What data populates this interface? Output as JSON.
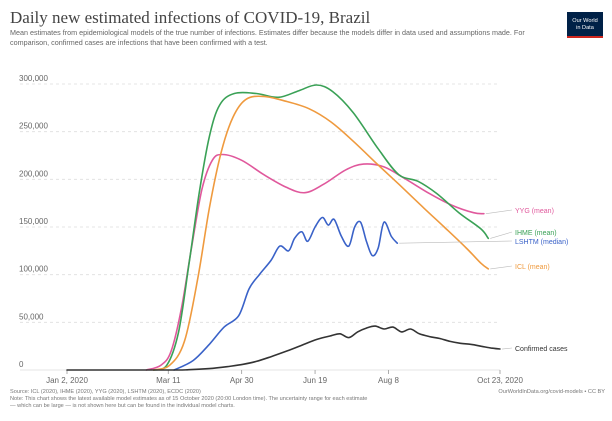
{
  "header": {
    "title": "Daily new estimated infections of COVID-19, Brazil",
    "subtitle": "Mean estimates from epidemiological models of the true number of infections. Estimates differ because the models differ in data used and assumptions made. For comparison, confirmed cases are infections that have been confirmed with a test."
  },
  "logo": {
    "line1": "Our World",
    "line2": "in Data"
  },
  "footer": {
    "source": "Source: ICL (2020), IHME (2020), YYG (2020), LSHTM (2020), ECDC (2020)",
    "url": "OurWorldInData.org/covid-models • CC BY",
    "note": "Note: This chart shows the latest available model estimates as of 15 October 2020 (20:00 London time). The uncertainty range for each estimate",
    "note2": "— which can be large — is not shown here but can be found in the individual model charts."
  },
  "colors": {
    "YYG": "#e0589c",
    "IHME": "#3aa156",
    "LSHTM": "#3a62c8",
    "ICL": "#ef9a3e",
    "Confirmed": "#333333",
    "grid": "#dddddd"
  },
  "chart_data": {
    "type": "line",
    "x_unit": "date",
    "x_ticks": [
      "Jan 2, 2020",
      "Mar 11",
      "Apr 30",
      "Jun 19",
      "Aug 8",
      "Oct 23, 2020"
    ],
    "y_ticks": [
      "0",
      "50,000",
      "100,000",
      "150,000",
      "200,000",
      "250,000",
      "300,000"
    ],
    "xlim": [
      "2020-01-02",
      "2020-10-23"
    ],
    "ylim": [
      0,
      300000
    ],
    "grid": "horizontal dashed",
    "legend_placement": "line-end labels",
    "series": [
      {
        "name": "YYG (mean)",
        "color_key": "YYG",
        "points": [
          [
            "2020-02-25",
            0
          ],
          [
            "2020-03-06",
            5000
          ],
          [
            "2020-03-13",
            20000
          ],
          [
            "2020-03-20",
            65000
          ],
          [
            "2020-03-27",
            130000
          ],
          [
            "2020-04-03",
            190000
          ],
          [
            "2020-04-10",
            220000
          ],
          [
            "2020-04-17",
            226000
          ],
          [
            "2020-04-30",
            220000
          ],
          [
            "2020-05-15",
            205000
          ],
          [
            "2020-05-30",
            192000
          ],
          [
            "2020-06-12",
            186000
          ],
          [
            "2020-06-25",
            195000
          ],
          [
            "2020-07-10",
            210000
          ],
          [
            "2020-07-22",
            216000
          ],
          [
            "2020-08-05",
            213000
          ],
          [
            "2020-08-20",
            200000
          ],
          [
            "2020-09-05",
            185000
          ],
          [
            "2020-09-20",
            173000
          ],
          [
            "2020-10-05",
            165000
          ],
          [
            "2020-10-12",
            164000
          ]
        ]
      },
      {
        "name": "IHME (mean)",
        "color_key": "IHME",
        "points": [
          [
            "2020-03-01",
            0
          ],
          [
            "2020-03-10",
            5000
          ],
          [
            "2020-03-18",
            40000
          ],
          [
            "2020-03-25",
            110000
          ],
          [
            "2020-04-01",
            185000
          ],
          [
            "2020-04-08",
            245000
          ],
          [
            "2020-04-15",
            278000
          ],
          [
            "2020-04-25",
            290000
          ],
          [
            "2020-05-10",
            290000
          ],
          [
            "2020-05-25",
            286000
          ],
          [
            "2020-06-08",
            293000
          ],
          [
            "2020-06-20",
            299000
          ],
          [
            "2020-07-01",
            292000
          ],
          [
            "2020-07-15",
            270000
          ],
          [
            "2020-08-01",
            232000
          ],
          [
            "2020-08-15",
            205000
          ],
          [
            "2020-08-28",
            198000
          ],
          [
            "2020-09-10",
            185000
          ],
          [
            "2020-09-25",
            165000
          ],
          [
            "2020-10-10",
            148000
          ],
          [
            "2020-10-15",
            138000
          ]
        ]
      },
      {
        "name": "LSHTM (median)",
        "color_key": "LSHTM",
        "points": [
          [
            "2020-03-15",
            0
          ],
          [
            "2020-03-28",
            10000
          ],
          [
            "2020-04-08",
            27000
          ],
          [
            "2020-04-18",
            45000
          ],
          [
            "2020-04-28",
            57000
          ],
          [
            "2020-05-05",
            85000
          ],
          [
            "2020-05-12",
            100000
          ],
          [
            "2020-05-20",
            115000
          ],
          [
            "2020-05-26",
            130000
          ],
          [
            "2020-06-01",
            125000
          ],
          [
            "2020-06-05",
            138000
          ],
          [
            "2020-06-10",
            145000
          ],
          [
            "2020-06-14",
            135000
          ],
          [
            "2020-06-19",
            150000
          ],
          [
            "2020-06-24",
            160000
          ],
          [
            "2020-06-28",
            152000
          ],
          [
            "2020-07-02",
            158000
          ],
          [
            "2020-07-07",
            140000
          ],
          [
            "2020-07-12",
            130000
          ],
          [
            "2020-07-16",
            150000
          ],
          [
            "2020-07-20",
            155000
          ],
          [
            "2020-07-24",
            135000
          ],
          [
            "2020-07-28",
            120000
          ],
          [
            "2020-08-01",
            128000
          ],
          [
            "2020-08-05",
            155000
          ],
          [
            "2020-08-10",
            140000
          ],
          [
            "2020-08-14",
            133000
          ]
        ]
      },
      {
        "name": "ICL (mean)",
        "color_key": "ICL",
        "points": [
          [
            "2020-03-01",
            0
          ],
          [
            "2020-03-12",
            5000
          ],
          [
            "2020-03-22",
            30000
          ],
          [
            "2020-03-31",
            95000
          ],
          [
            "2020-04-08",
            170000
          ],
          [
            "2020-04-16",
            228000
          ],
          [
            "2020-04-24",
            265000
          ],
          [
            "2020-05-03",
            284000
          ],
          [
            "2020-05-15",
            287000
          ],
          [
            "2020-05-30",
            282000
          ],
          [
            "2020-06-15",
            274000
          ],
          [
            "2020-06-30",
            260000
          ],
          [
            "2020-07-15",
            240000
          ],
          [
            "2020-08-01",
            215000
          ],
          [
            "2020-08-15",
            195000
          ],
          [
            "2020-09-01",
            170000
          ],
          [
            "2020-09-15",
            150000
          ],
          [
            "2020-09-30",
            128000
          ],
          [
            "2020-10-10",
            112000
          ],
          [
            "2020-10-15",
            106000
          ]
        ]
      },
      {
        "name": "Confirmed cases",
        "color_key": "Confirmed",
        "points": [
          [
            "2020-01-02",
            0
          ],
          [
            "2020-03-11",
            0
          ],
          [
            "2020-03-25",
            300
          ],
          [
            "2020-04-08",
            1500
          ],
          [
            "2020-04-20",
            3500
          ],
          [
            "2020-05-01",
            6000
          ],
          [
            "2020-05-10",
            9000
          ],
          [
            "2020-05-20",
            14000
          ],
          [
            "2020-05-31",
            20000
          ],
          [
            "2020-06-10",
            26000
          ],
          [
            "2020-06-20",
            32000
          ],
          [
            "2020-06-30",
            36000
          ],
          [
            "2020-07-06",
            38000
          ],
          [
            "2020-07-12",
            34000
          ],
          [
            "2020-07-18",
            40000
          ],
          [
            "2020-07-24",
            44000
          ],
          [
            "2020-07-30",
            46000
          ],
          [
            "2020-08-05",
            43000
          ],
          [
            "2020-08-11",
            45000
          ],
          [
            "2020-08-17",
            40000
          ],
          [
            "2020-08-23",
            43000
          ],
          [
            "2020-08-29",
            38000
          ],
          [
            "2020-09-05",
            35000
          ],
          [
            "2020-09-12",
            33000
          ],
          [
            "2020-09-19",
            30000
          ],
          [
            "2020-09-26",
            28000
          ],
          [
            "2020-10-03",
            27000
          ],
          [
            "2020-10-10",
            25000
          ],
          [
            "2020-10-17",
            23000
          ],
          [
            "2020-10-23",
            22000
          ]
        ]
      }
    ]
  }
}
